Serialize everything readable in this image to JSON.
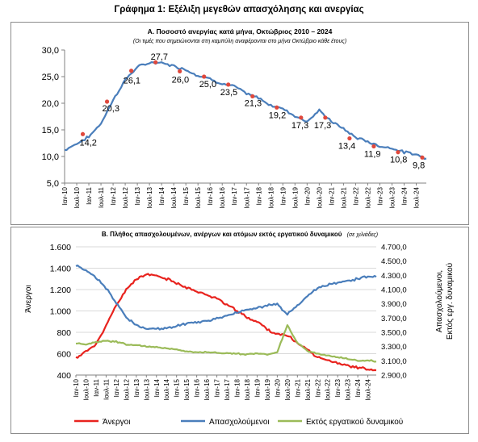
{
  "main_title": "Γράφημα 1: Εξέλιξη μεγεθών απασχόλησης και ανεργίας",
  "x_tick_labels": [
    "Ιαν-10",
    "Ιουλ-10",
    "Ιαν-11",
    "Ιουλ-11",
    "Ιαν-12",
    "Ιουλ-12",
    "Ιαν-13",
    "Ιουλ-13",
    "Ιαν-14",
    "Ιουλ-14",
    "Ιαν-15",
    "Ιουλ-15",
    "Ιαν-16",
    "Ιουλ-16",
    "Ιαν-17",
    "Ιουλ-17",
    "Ιαν-18",
    "Ιουλ-18",
    "Ιαν-19",
    "Ιουλ-19",
    "Ιαν-20",
    "Ιουλ-20",
    "Ιαν-21",
    "Ιουλ-21",
    "Ιαν-22",
    "Ιουλ-22",
    "Ιαν-23",
    "Ιουλ-23",
    "Ιαν-24",
    "Ιουλ-24"
  ],
  "chart_data": [
    {
      "type": "line",
      "title": "Α. Ποσοστό ανεργίας κατά μήνα, Οκτώβριος 2010 – 2024",
      "subtitle": "(Οι τιμές που σημειώνονται στη καμπύλη αναφέρονται στο μήνα Οκτώβριο κάθε έτους)",
      "ylim": [
        5,
        30
      ],
      "y_ticks": [
        "5,0",
        "10,0",
        "15,0",
        "20,0",
        "25,0",
        "30,0"
      ],
      "x_range": [
        "Ιαν-10",
        "Δεκ-24"
      ],
      "grid": false,
      "legend": "none",
      "series_color": "#4a7ebb",
      "marker_color": "#e0483c",
      "x": [
        "Ιαν-10",
        "Ιουλ-10",
        "Ιαν-11",
        "Ιουλ-11",
        "Ιαν-12",
        "Ιουλ-12",
        "Ιαν-13",
        "Ιουλ-13",
        "Ιαν-14",
        "Ιουλ-14",
        "Ιαν-15",
        "Ιουλ-15",
        "Ιαν-16",
        "Ιουλ-16",
        "Ιαν-17",
        "Ιουλ-17",
        "Ιαν-18",
        "Ιουλ-18",
        "Ιαν-19",
        "Ιουλ-19",
        "Ιαν-20",
        "Ιουλ-20",
        "Ιαν-21",
        "Ιουλ-21",
        "Ιαν-22",
        "Ιουλ-22",
        "Ιαν-23",
        "Ιουλ-23",
        "Ιαν-24",
        "Ιουλ-24",
        "Δεκ-24"
      ],
      "values": [
        11.2,
        12.4,
        13.7,
        16.2,
        20.6,
        24.4,
        26.8,
        27.6,
        27.6,
        27.0,
        26.3,
        25.2,
        24.6,
        23.6,
        23.2,
        21.8,
        21.0,
        19.6,
        19.0,
        17.6,
        16.6,
        18.6,
        16.6,
        15.2,
        13.6,
        12.8,
        11.9,
        11.6,
        10.8,
        10.4,
        9.6
      ],
      "october_markers": [
        {
          "x": "Οκτ-10",
          "value": 14.2,
          "label": "14,2"
        },
        {
          "x": "Οκτ-11",
          "value": 20.3,
          "label": "20,3"
        },
        {
          "x": "Οκτ-12",
          "value": 26.1,
          "label": "26,1"
        },
        {
          "x": "Οκτ-13",
          "value": 27.7,
          "label": "27,7"
        },
        {
          "x": "Οκτ-14",
          "value": 26.0,
          "label": "26,0"
        },
        {
          "x": "Οκτ-15",
          "value": 25.0,
          "label": "25,0"
        },
        {
          "x": "Οκτ-16",
          "value": 23.5,
          "label": "23,5"
        },
        {
          "x": "Οκτ-17",
          "value": 21.3,
          "label": "21,3"
        },
        {
          "x": "Οκτ-18",
          "value": 19.2,
          "label": "19,2"
        },
        {
          "x": "Οκτ-19",
          "value": 17.3,
          "label": "17,3"
        },
        {
          "x": "Οκτ-20",
          "value": 17.3,
          "label": "17,3"
        },
        {
          "x": "Οκτ-21",
          "value": 13.4,
          "label": "13,4"
        },
        {
          "x": "Οκτ-22",
          "value": 11.9,
          "label": "11,9"
        },
        {
          "x": "Οκτ-23",
          "value": 10.8,
          "label": "10,8"
        },
        {
          "x": "Οκτ-24",
          "value": 9.8,
          "label": "9,8"
        }
      ]
    },
    {
      "type": "line",
      "title": "Β. Πλήθος απασχολουμένων, ανέργων και ατόμων εκτός εργατικού δυναμικού",
      "title_note": "(σε χιλιάδες)",
      "ylabel": "Άνεργοι",
      "ylim": [
        400,
        1600
      ],
      "y_ticks": [
        "400",
        "600",
        "800",
        "1.000",
        "1.200",
        "1.400",
        "1.600"
      ],
      "y2label": "Απασχολούμενοι, Εκτός εργ. δυναμικού",
      "y2lim": [
        2900,
        4700
      ],
      "y2_ticks": [
        "2.900,0",
        "3.100,0",
        "3.300,0",
        "3.500,0",
        "3.700,0",
        "3.900,0",
        "4.100,0",
        "4.300,0",
        "4.500,0",
        "4.700,0"
      ],
      "x_range": [
        "Ιαν-10",
        "Δεκ-24"
      ],
      "grid": true,
      "legend": "bottom",
      "x": [
        "Ιαν-10",
        "Ιουλ-10",
        "Ιαν-11",
        "Ιουλ-11",
        "Ιαν-12",
        "Ιουλ-12",
        "Ιαν-13",
        "Ιουλ-13",
        "Ιαν-14",
        "Ιουλ-14",
        "Ιαν-15",
        "Ιουλ-15",
        "Ιαν-16",
        "Ιουλ-16",
        "Ιαν-17",
        "Ιουλ-17",
        "Ιαν-18",
        "Ιουλ-18",
        "Ιαν-19",
        "Ιουλ-19",
        "Ιαν-20",
        "Ιουλ-20",
        "Ιαν-21",
        "Ιουλ-21",
        "Ιαν-22",
        "Ιουλ-22",
        "Ιαν-23",
        "Ιουλ-23",
        "Ιαν-24",
        "Ιουλ-24",
        "Δεκ-24"
      ],
      "series": [
        {
          "name": "Άνεργοι",
          "axis": "left",
          "color": "#e8231e",
          "values": [
            560,
            620,
            690,
            860,
            1050,
            1200,
            1300,
            1340,
            1330,
            1300,
            1260,
            1220,
            1180,
            1150,
            1120,
            1060,
            1000,
            940,
            900,
            830,
            780,
            770,
            700,
            640,
            570,
            540,
            510,
            490,
            470,
            455,
            445
          ]
        },
        {
          "name": "Απασχολούμενοι",
          "axis": "right",
          "color": "#4a7ebb",
          "values": [
            4440,
            4370,
            4270,
            4120,
            3920,
            3710,
            3600,
            3550,
            3550,
            3560,
            3590,
            3620,
            3640,
            3660,
            3690,
            3740,
            3780,
            3820,
            3840,
            3880,
            3900,
            3750,
            3870,
            4010,
            4120,
            4170,
            4200,
            4220,
            4250,
            4280,
            4280
          ]
        },
        {
          "name": "Εκτός εργατικού δυναμικού",
          "axis": "right",
          "color": "#9bbb59",
          "values": [
            3350,
            3330,
            3360,
            3380,
            3370,
            3330,
            3320,
            3300,
            3290,
            3270,
            3260,
            3230,
            3220,
            3220,
            3210,
            3210,
            3200,
            3190,
            3200,
            3190,
            3220,
            3600,
            3350,
            3240,
            3200,
            3170,
            3150,
            3130,
            3100,
            3110,
            3090
          ]
        }
      ]
    }
  ]
}
